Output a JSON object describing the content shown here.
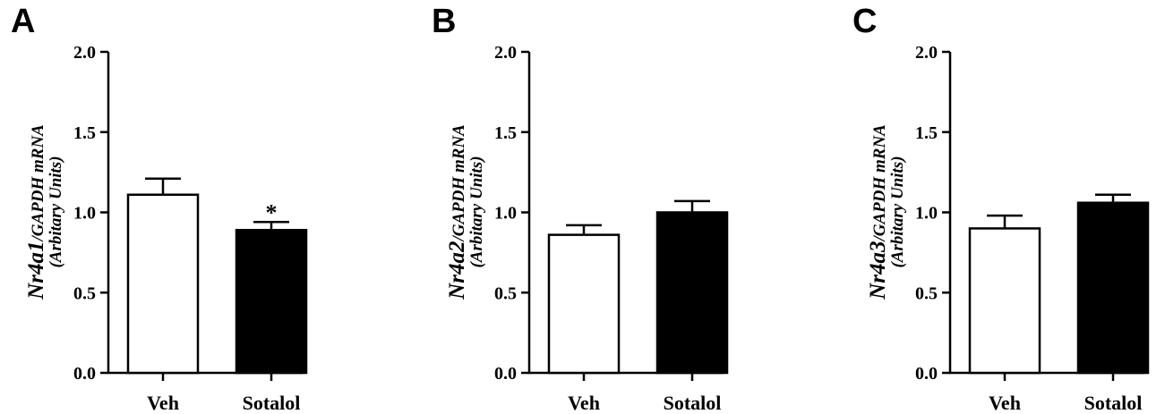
{
  "chart_data": [
    {
      "type": "bar",
      "panel": "A",
      "gene": "Nr4a1",
      "ylabel_ratio": "/GAPDH mRNA",
      "ylabel_units": "(Arbitary Units)",
      "categories": [
        "Veh",
        "Sotalol"
      ],
      "values": [
        1.11,
        0.89
      ],
      "errors": [
        0.1,
        0.05
      ],
      "fills": [
        "#ffffff",
        "#000000"
      ],
      "significance": [
        "",
        "*"
      ],
      "ylim": [
        0,
        2.0
      ],
      "yticks": [
        "0.0",
        "0.5",
        "1.0",
        "1.5",
        "2.0"
      ]
    },
    {
      "type": "bar",
      "panel": "B",
      "gene": "Nr4a2",
      "ylabel_ratio": "/GAPDH mRNA",
      "ylabel_units": "(Arbitary Units)",
      "categories": [
        "Veh",
        "Sotalol"
      ],
      "values": [
        0.86,
        1.0
      ],
      "errors": [
        0.06,
        0.07
      ],
      "fills": [
        "#ffffff",
        "#000000"
      ],
      "significance": [
        "",
        ""
      ],
      "ylim": [
        0,
        2.0
      ],
      "yticks": [
        "0.0",
        "0.5",
        "1.0",
        "1.5",
        "2.0"
      ]
    },
    {
      "type": "bar",
      "panel": "C",
      "gene": "Nr4a3",
      "ylabel_ratio": "/GAPDH mRNA",
      "ylabel_units": "(Arbitary Units)",
      "categories": [
        "Veh",
        "Sotalol"
      ],
      "values": [
        0.9,
        1.06
      ],
      "errors": [
        0.08,
        0.05
      ],
      "fills": [
        "#ffffff",
        "#000000"
      ],
      "significance": [
        "",
        ""
      ],
      "ylim": [
        0,
        2.0
      ],
      "yticks": [
        "0.0",
        "0.5",
        "1.0",
        "1.5",
        "2.0"
      ]
    }
  ]
}
